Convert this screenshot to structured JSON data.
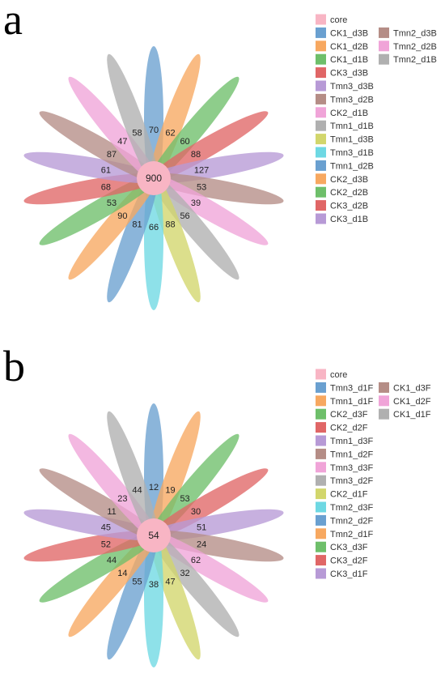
{
  "chart_data": [
    {
      "type": "flower-venn",
      "panel_label": "a",
      "core": {
        "name": "core",
        "value": 900,
        "color": "#f8b5c4"
      },
      "petals": [
        {
          "name": "CK1_d3B",
          "value": 70,
          "color": "#6aa0d0"
        },
        {
          "name": "CK1_d2B",
          "value": 62,
          "color": "#f7a860"
        },
        {
          "name": "CK1_d1B",
          "value": 60,
          "color": "#6ebf6a"
        },
        {
          "name": "CK3_d3B",
          "value": 88,
          "color": "#e06666"
        },
        {
          "name": "Tmn3_d3B",
          "value": 127,
          "color": "#b79ad6"
        },
        {
          "name": "Tmn3_d2B",
          "value": 53,
          "color": "#b58d86"
        },
        {
          "name": "CK2_d1B",
          "value": 39,
          "color": "#f0a4d8"
        },
        {
          "name": "Tmn1_d1B",
          "value": 56,
          "color": "#b0b0b0"
        },
        {
          "name": "Tmn1_d3B",
          "value": 88,
          "color": "#d2d66c"
        },
        {
          "name": "Tmn3_d1B",
          "value": 66,
          "color": "#6ed8e3"
        },
        {
          "name": "Tmn1_d2B",
          "value": 81,
          "color": "#6aa0d0"
        },
        {
          "name": "CK2_d3B",
          "value": 90,
          "color": "#f7a860"
        },
        {
          "name": "CK2_d2B",
          "value": 53,
          "color": "#6ebf6a"
        },
        {
          "name": "CK3_d2B",
          "value": 68,
          "color": "#e06666"
        },
        {
          "name": "CK3_d1B",
          "value": 61,
          "color": "#b79ad6"
        },
        {
          "name": "Tmn2_d3B",
          "value": 87,
          "color": "#b58d86"
        },
        {
          "name": "Tmn2_d2B",
          "value": 47,
          "color": "#f0a4d8"
        },
        {
          "name": "Tmn2_d1B",
          "value": 58,
          "color": "#b0b0b0"
        }
      ]
    },
    {
      "type": "flower-venn",
      "panel_label": "b",
      "core": {
        "name": "core",
        "value": 54,
        "color": "#f8b5c4"
      },
      "petals": [
        {
          "name": "Tmn3_d1F",
          "value": 12,
          "color": "#6aa0d0"
        },
        {
          "name": "Tmn1_d1F",
          "value": 19,
          "color": "#f7a860"
        },
        {
          "name": "CK2_d3F",
          "value": 53,
          "color": "#6ebf6a"
        },
        {
          "name": "CK2_d2F",
          "value": 30,
          "color": "#e06666"
        },
        {
          "name": "Tmn1_d3F",
          "value": 51,
          "color": "#b79ad6"
        },
        {
          "name": "Tmn1_d2F",
          "value": 24,
          "color": "#b58d86"
        },
        {
          "name": "Tmn3_d3F",
          "value": 62,
          "color": "#f0a4d8"
        },
        {
          "name": "Tmn3_d2F",
          "value": 32,
          "color": "#b0b0b0"
        },
        {
          "name": "CK2_d1F",
          "value": 47,
          "color": "#d2d66c"
        },
        {
          "name": "Tmn2_d3F",
          "value": 38,
          "color": "#6ed8e3"
        },
        {
          "name": "Tmn2_d2F",
          "value": 55,
          "color": "#6aa0d0"
        },
        {
          "name": "Tmn2_d1F",
          "value": 14,
          "color": "#f7a860"
        },
        {
          "name": "CK3_d3F",
          "value": 44,
          "color": "#6ebf6a"
        },
        {
          "name": "CK3_d2F",
          "value": 52,
          "color": "#e06666"
        },
        {
          "name": "CK3_d1F",
          "value": 45,
          "color": "#b79ad6"
        },
        {
          "name": "CK1_d3F",
          "value": 11,
          "color": "#b58d86"
        },
        {
          "name": "CK1_d2F",
          "value": 23,
          "color": "#f0a4d8"
        },
        {
          "name": "CK1_d1F",
          "value": 44,
          "color": "#b0b0b0"
        }
      ]
    }
  ]
}
